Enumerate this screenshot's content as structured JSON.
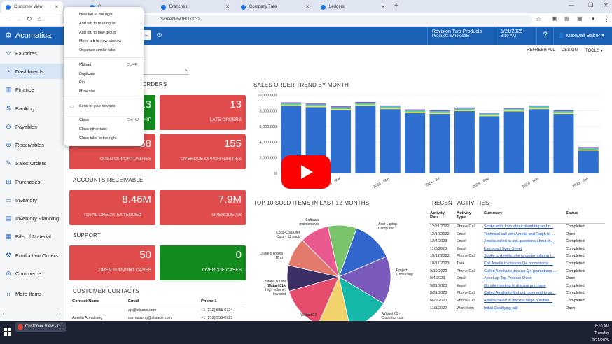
{
  "browser": {
    "tabs": [
      {
        "label": "Customer View"
      },
      {
        "label": "C"
      },
      {
        "label": "Branches"
      },
      {
        "label": "Company Tree"
      },
      {
        "label": "Ledgers"
      }
    ],
    "url": "/ScreenId=DB000031"
  },
  "context_menu": {
    "items": [
      {
        "label": "New tab to the right"
      },
      {
        "label": "Add tab to reading list"
      },
      {
        "label": "Add tab to new group"
      },
      {
        "label": "Move tab to new window"
      },
      {
        "label": "Organize similar tabs"
      },
      {
        "label": "Reload",
        "shortcut": "Ctrl+R"
      },
      {
        "label": "Duplicate"
      },
      {
        "label": "Pin"
      },
      {
        "label": "Mute site"
      },
      {
        "label": "Send to your devices"
      },
      {
        "label": "Close",
        "shortcut": "Ctrl+W"
      },
      {
        "label": "Close other tabs"
      },
      {
        "label": "Close tabs to the right"
      }
    ]
  },
  "header": {
    "app_name": "Acumatica",
    "branch_name": "Revision Two Products",
    "branch_sub": "Products Wholesale",
    "date": "1/21/2025",
    "time": "8:10 AM",
    "help": "?",
    "user": "Maxwell Baker"
  },
  "sidebar": {
    "items": [
      {
        "label": "Favorites",
        "icon": "star-icon"
      },
      {
        "label": "Dashboards",
        "icon": "dashboard-icon"
      },
      {
        "label": "Finance",
        "icon": "finance-icon"
      },
      {
        "label": "Banking",
        "icon": "dollar-icon"
      },
      {
        "label": "Payables",
        "icon": "minus-circle-icon"
      },
      {
        "label": "Receivables",
        "icon": "plus-circle-icon"
      },
      {
        "label": "Sales Orders",
        "icon": "sales-orders-icon"
      },
      {
        "label": "Purchases",
        "icon": "cart-icon"
      },
      {
        "label": "Inventory",
        "icon": "truck-icon"
      },
      {
        "label": "Inventory Planning",
        "icon": "planning-icon"
      },
      {
        "label": "Bills of Material",
        "icon": "bom-icon"
      },
      {
        "label": "Production Orders",
        "icon": "production-icon"
      },
      {
        "label": "Commerce",
        "icon": "commerce-icon"
      },
      {
        "label": "More Items",
        "icon": "grid-icon"
      }
    ]
  },
  "toolbar": {
    "refresh": "REFRESH ALL",
    "design": "DESIGN",
    "tools": "TOOLS"
  },
  "sections": {
    "orders": "ORDERS",
    "ar": "ACCOUNTS RECEIVABLE",
    "support": "SUPPORT",
    "contacts": "CUSTOMER CONTACTS",
    "trend": "SALES ORDER TREND BY MONTH",
    "top10": "TOP 10 SOLD ITEMS IN LAST 12 MONTHS",
    "recent": "RECENT ACTIVITIES"
  },
  "kpis": {
    "ship": {
      "value": "13",
      "label": "HIP"
    },
    "late": {
      "value": "13",
      "label": "LATE ORDERS"
    },
    "open_opp": {
      "value": "58",
      "label": "OPEN OPPORTUNITIES"
    },
    "overdue_opp": {
      "value": "155",
      "label": "OVERDUE OPPORTUNITIES"
    },
    "credit": {
      "value": "8.46M",
      "label": "TOTAL CREDIT EXTENDED"
    },
    "overdue_ar": {
      "value": "7.9M",
      "label": "OVERDUE AR"
    },
    "open_support": {
      "value": "50",
      "label": "OPEN SUPPORT CASES"
    },
    "overdue_support": {
      "value": "0",
      "label": "OVERDUE CASES"
    }
  },
  "contacts": {
    "headers": [
      "Contact Name",
      "Email",
      "Phone 1"
    ],
    "rows": [
      [
        "",
        "ap@slisace.com",
        "+1 (212) 555-6724"
      ],
      [
        "Amelia Armstrong",
        "aarmstrong@slisace.com",
        "+1 (212) 555-6725"
      ]
    ]
  },
  "activities": {
    "headers": [
      "Activity Date",
      "Activity Type",
      "Summary",
      "Status"
    ],
    "rows": [
      [
        "12/21/2022",
        "Phone Call",
        "Spoke with John about plumbing and n...",
        "Completed"
      ],
      [
        "12/12/2022",
        "Email",
        "Technical call with Amelia and Ralph to ...",
        "Open"
      ],
      [
        "12/4/2023",
        "Email",
        "Amelia called to ask questions about th...",
        "Completed"
      ],
      [
        "11/2/2023",
        "Email",
        "Elecomp | Spec Sheet",
        "Completed"
      ],
      [
        "10/12/2023",
        "Phone Call",
        "Spoke to Amelia; she is contemplating t...",
        "Completed"
      ],
      [
        "10/17/2023",
        "Task",
        "Call Amelia to discuss Q4 promotions; ...",
        "Completed"
      ],
      [
        "9/19/2023",
        "Phone Call",
        "Called Amelia to discuss Q4 promotions ...",
        "Completed"
      ],
      [
        "9/4/2023",
        "Email",
        "Acer Lap Top Product Sheet",
        "Open"
      ],
      [
        "9/21/2023",
        "Email",
        "On site meeting to discuss purchase",
        "Completed"
      ],
      [
        "8/31/2023",
        "Phone Call",
        "Called Amelia to find out more and to se...",
        "Completed"
      ],
      [
        "8/29/2023",
        "Phone Call",
        "Amelia called to discuss large purchas...",
        "Completed"
      ],
      [
        "11/8/2022",
        "Work Item",
        "Initial Qualifying call",
        "Open"
      ]
    ]
  },
  "chart_data": [
    {
      "type": "bar",
      "title": "SALES ORDER TREND BY MONTH",
      "categories": [
        "2024 - Jan",
        "2024 - Feb",
        "2024 - Mar",
        "2024 - Apr",
        "2024 - May",
        "2024 - Jun",
        "2024 - Jul",
        "2024 - Aug",
        "2024 - Sep",
        "2024 - Oct",
        "2024 - Nov",
        "2024 - Dec",
        "2025 - Jan"
      ],
      "tick_labels": [
        "2024 -",
        "2024 - Mar",
        "2024 - May",
        "2024 - Jul",
        "2024 - Sep",
        "2024 - Nov",
        "2025 - Jan"
      ],
      "series": [
        {
          "values": [
            8600000,
            8450000,
            8100000,
            8650000,
            8200000,
            7700000,
            7600000,
            7950000,
            7300000,
            7900000,
            8200000,
            7600000,
            2900000
          ]
        }
      ],
      "ylim": [
        0,
        10000000
      ],
      "yticks": [
        "0",
        "2,000,000",
        "4,000,000",
        "6,000,000",
        "8,000,000",
        "10,000,000"
      ],
      "colors": [
        "#2f6fd0",
        "#f0e44a",
        "#6fc86c",
        "#45c4c8",
        "#8a5cc7"
      ]
    },
    {
      "type": "pie",
      "title": "TOP 10 SOLD ITEMS IN LAST 12 MONTHS",
      "labels": [
        "Acer Laptop Computer",
        "Project Consulting",
        "Widget 03 - Standout cost",
        "Widget 02",
        "Widget 01 - High volume, low cost",
        "Sweet N Low Sugar 12pk",
        "Drake's Yodels 10 ct",
        "Coca-Cola Diet Cans - 12 pack",
        "Software maintenance"
      ],
      "values": [
        13,
        15,
        13,
        10,
        14,
        8,
        9,
        9,
        9
      ],
      "colors": [
        "#3366cc",
        "#7a5bbb",
        "#15b7a8",
        "#f2d26b",
        "#e64c6b",
        "#3b2f66",
        "#e37a6b",
        "#e8588f",
        "#7ac56b"
      ]
    }
  ],
  "taskbar": {
    "app": "Customer View - G...",
    "time": "8:10 AM",
    "day": "Tuesday",
    "date": "1/21/2025"
  }
}
